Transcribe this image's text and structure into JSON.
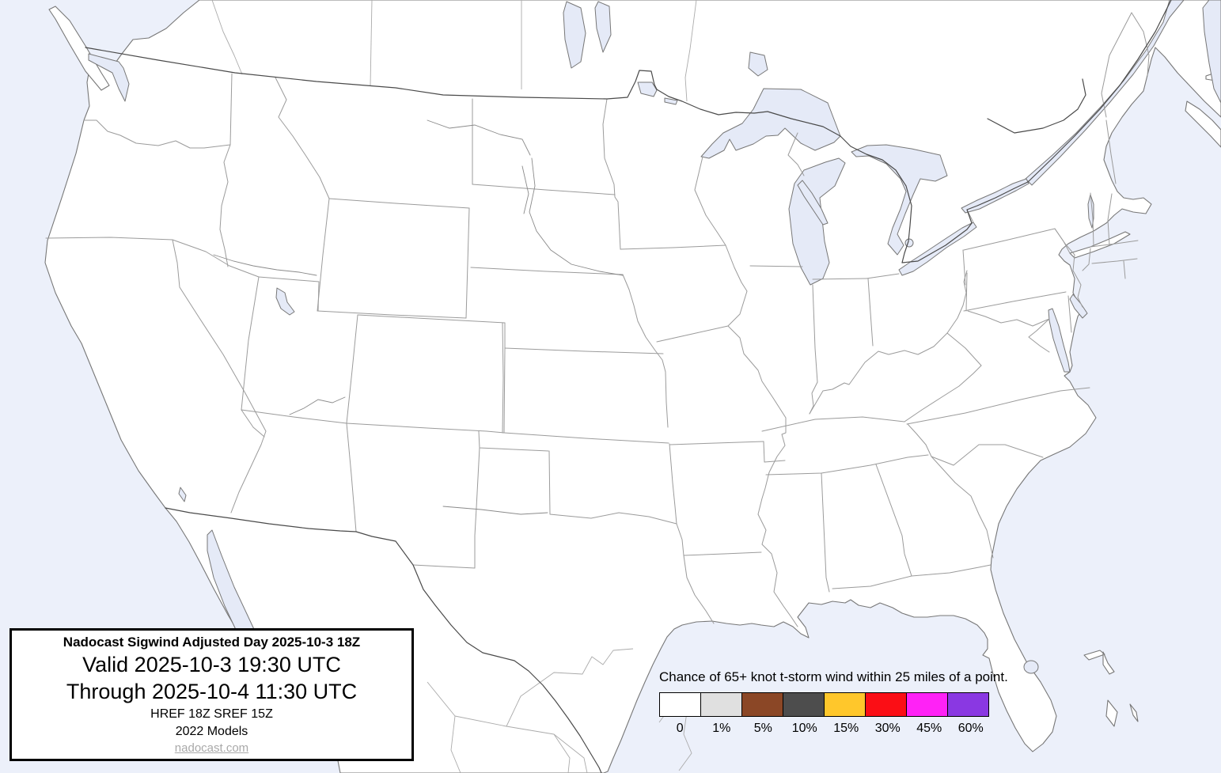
{
  "map": {
    "region": "Continental United States forecast map",
    "colors": {
      "ocean": "#ECF0FA",
      "lakes": "#E5EAF7",
      "land": "#FFFFFF",
      "coastline": "#777777",
      "state_border": "#9B9B9B",
      "country_border": "#4A4A4A",
      "province_border": "#ABABAB"
    }
  },
  "info_box": {
    "title": "Nadocast Sigwind Adjusted Day 2025-10-3 18Z",
    "valid": "Valid 2025-10-3 19:30 UTC",
    "through": "Through 2025-10-4 11:30 UTC",
    "models": "HREF 18Z SREF 15Z",
    "models_year": "2022 Models",
    "website": "nadocast.com"
  },
  "legend": {
    "title": "Chance of 65+ knot t-storm wind within 25 miles of a point.",
    "entries": [
      {
        "label": "0",
        "color": "#FFFFFF"
      },
      {
        "label": "1%",
        "color": "#E0E0E0"
      },
      {
        "label": "5%",
        "color": "#8B4726"
      },
      {
        "label": "10%",
        "color": "#4D4D4D"
      },
      {
        "label": "15%",
        "color": "#FFC72B"
      },
      {
        "label": "30%",
        "color": "#FB0E15"
      },
      {
        "label": "45%",
        "color": "#FF22F6"
      },
      {
        "label": "60%",
        "color": "#8A38E2"
      }
    ]
  }
}
